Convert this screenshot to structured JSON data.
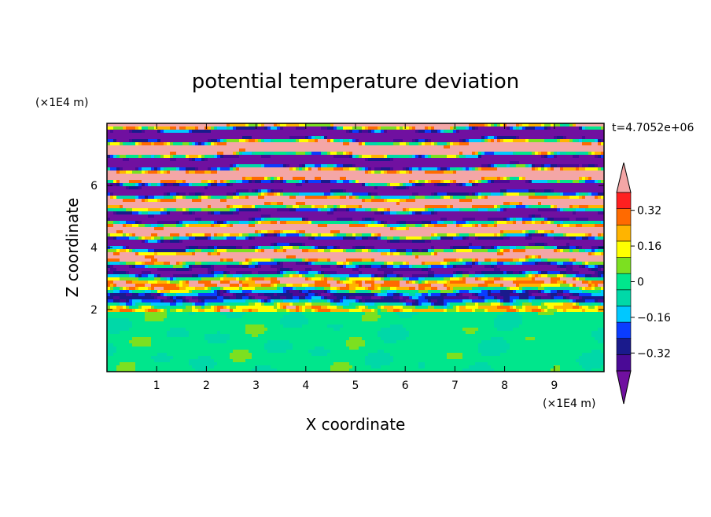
{
  "chart_data": {
    "type": "heatmap",
    "title": "potential temperature deviation",
    "xlabel": "X coordinate",
    "ylabel": "Z coordinate",
    "x_unit": "(×1E4 m)",
    "y_unit": "(×1E4 m)",
    "time_label": "t=4.7052e+06",
    "xlim": [
      0,
      10
    ],
    "ylim": [
      0,
      8
    ],
    "x_ticks": [
      "1",
      "2",
      "3",
      "4",
      "5",
      "6",
      "7",
      "8",
      "9"
    ],
    "y_ticks": [
      "2",
      "4",
      "6"
    ],
    "colorbar": {
      "tick_labels": [
        "0.32",
        "0.16",
        "0",
        "−0.16",
        "−0.32"
      ],
      "tick_values": [
        0.32,
        0.16,
        0,
        -0.16,
        -0.32
      ],
      "levels": [
        -0.4,
        -0.32,
        -0.24,
        -0.16,
        -0.08,
        0,
        0.08,
        0.16,
        0.24,
        0.32,
        0.4
      ],
      "colors": [
        "#4a0a96",
        "#1a1a8c",
        "#0a3cff",
        "#00c8ff",
        "#00d8a8",
        "#00e68c",
        "#7ce020",
        "#ffff00",
        "#ffb400",
        "#ff6a00",
        "#ff2020"
      ],
      "over_color": "#f4a6a6",
      "under_color": "#7010a0"
    },
    "field_description": "layered stratified field: near-zero (green) below z≈2, alternating positive/negative bands above"
  }
}
